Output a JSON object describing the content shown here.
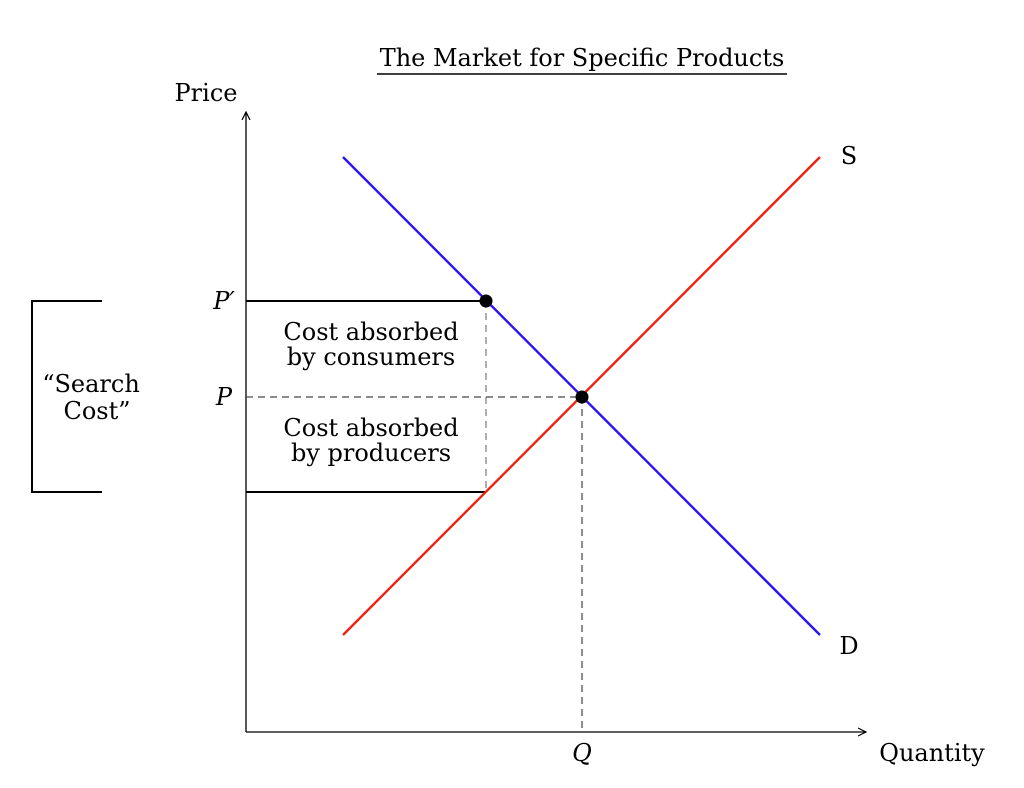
{
  "title": "The Market for Specific Products",
  "axes": {
    "y_label": "Price",
    "x_label": "Quantity"
  },
  "curves": {
    "supply": {
      "label": "S",
      "color": "#ee2211"
    },
    "demand": {
      "label": "D",
      "color": "#2b14ee"
    }
  },
  "prices": {
    "p_prime": "P′",
    "p": "P"
  },
  "quantity": {
    "q": "Q"
  },
  "regions": {
    "consumers": {
      "line1": "Cost absorbed",
      "line2": "by consumers",
      "color": "#2b14ee"
    },
    "producers": {
      "line1": "Cost absorbed",
      "line2": "by producers",
      "color": "#ee2211"
    }
  },
  "bracket": {
    "line1": "“Search",
    "line2": "Cost”"
  }
}
